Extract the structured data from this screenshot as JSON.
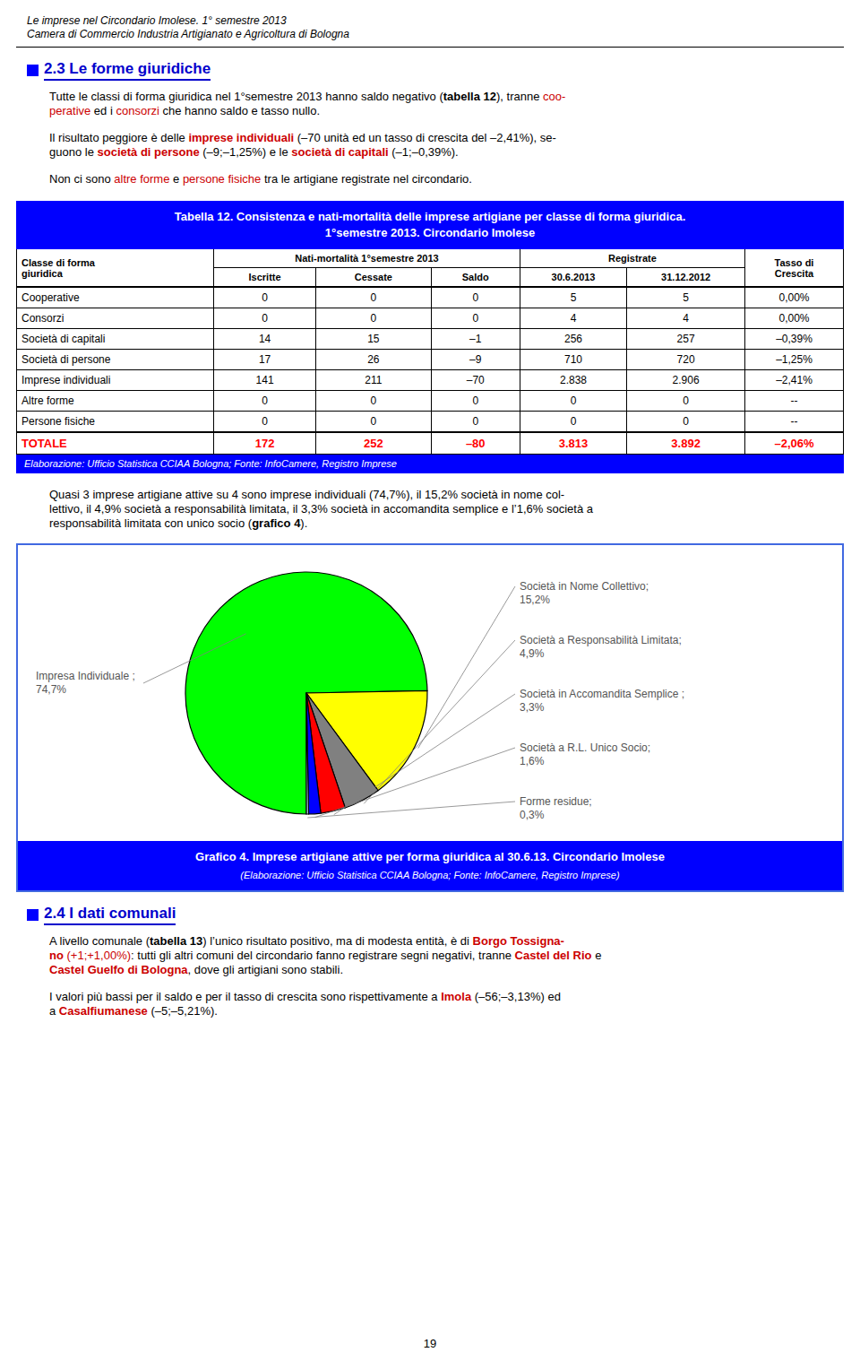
{
  "page": {
    "header": [
      "Le imprese nel Circondario Imolese. 1° semestre 2013",
      "Camera di Commercio Industria Artigianato e Agricoltura di Bologna"
    ],
    "colors": {
      "heading": "#0000cc",
      "emphasis": "#cc0000",
      "bar": "#0000ff",
      "total": "#ff0000",
      "chart_border": "#4169e1"
    },
    "content": [
      {
        "kind": "heading",
        "text": "2.3 Le forme giuridiche"
      },
      {
        "kind": "paragraph",
        "lines": [
          [
            {
              "text": "Tutte le classi di forma giuridica nel 1°semestre 2013 hanno saldo negativo (",
              "style": "plain"
            },
            {
              "text": "tabella 12",
              "style": "bold"
            },
            {
              "text": "), tranne ",
              "style": "plain"
            },
            {
              "text": "coo-",
              "style": "red"
            }
          ],
          [
            {
              "text": "perative",
              "style": "red"
            },
            {
              "text": " ed i ",
              "style": "plain"
            },
            {
              "text": "consorzi",
              "style": "red"
            },
            {
              "text": " che hanno saldo e tasso nullo.",
              "style": "plain"
            }
          ]
        ]
      },
      {
        "kind": "paragraph",
        "lines": [
          [
            {
              "text": "Il risultato peggiore è delle ",
              "style": "plain"
            },
            {
              "text": "imprese individuali",
              "style": "red-bold"
            },
            {
              "text": " (–70 unità ed un tasso di crescita del –2,41%), se-",
              "style": "plain"
            }
          ],
          [
            {
              "text": "guono le ",
              "style": "plain"
            },
            {
              "text": "società di persone",
              "style": "red-bold"
            },
            {
              "text": " (–9;–1,25%) e le ",
              "style": "plain"
            },
            {
              "text": "società di capitali",
              "style": "red-bold"
            },
            {
              "text": " (–1;–0,39%).",
              "style": "plain"
            }
          ]
        ]
      },
      {
        "kind": "paragraph",
        "lines": [
          [
            {
              "text": "Non ci sono ",
              "style": "plain"
            },
            {
              "text": "altre forme",
              "style": "red"
            },
            {
              "text": " e ",
              "style": "plain"
            },
            {
              "text": "persone fisiche",
              "style": "red"
            },
            {
              "text": " tra le artigiane registrate nel circondario.",
              "style": "plain"
            }
          ]
        ]
      },
      {
        "kind": "table",
        "title": [
          "Tabella 12. Consistenza e nati-mortalità delle imprese artigiane per classe di forma giuridica.",
          "1°semestre 2013. Circondario Imolese"
        ],
        "groups": [
          "Nati-mortalità 1°semestre 2013",
          "Registrate"
        ],
        "columns": [
          "Classe di forma\ngiuridica",
          "Iscritte",
          "Cessate",
          "Saldo",
          "30.6.2013",
          "31.12.2012",
          "Tasso di\nCrescita"
        ],
        "rows": [
          [
            "Cooperative",
            "0",
            "0",
            "0",
            "5",
            "5",
            "0,00%"
          ],
          [
            "Consorzi",
            "0",
            "0",
            "0",
            "4",
            "4",
            "0,00%"
          ],
          [
            "Società di capitali",
            "14",
            "15",
            "–1",
            "256",
            "257",
            "–0,39%"
          ],
          [
            "Società di persone",
            "17",
            "26",
            "–9",
            "710",
            "720",
            "–1,25%"
          ],
          [
            "Imprese individuali",
            "141",
            "211",
            "–70",
            "2.838",
            "2.906",
            "–2,41%"
          ],
          [
            "Altre forme",
            "0",
            "0",
            "0",
            "0",
            "0",
            "--"
          ],
          [
            "Persone fisiche",
            "0",
            "0",
            "0",
            "0",
            "0",
            "--"
          ]
        ],
        "total": [
          "TOTALE",
          "172",
          "252",
          "–80",
          "3.813",
          "3.892",
          "–2,06%"
        ],
        "footer": "Elaborazione: Ufficio Statistica CCIAA Bologna; Fonte: InfoCamere, Registro Imprese"
      },
      {
        "kind": "paragraph",
        "lines": [
          [
            {
              "text": "Quasi 3 imprese artigiane attive su 4 sono imprese individuali (74,7%), il 15,2% società in nome col-",
              "style": "plain"
            }
          ],
          [
            {
              "text": "lettivo, il 4,9% società a responsabilità limitata, il 3,3% società in accomandita semplice e l’1,6% società a",
              "style": "plain"
            }
          ],
          [
            {
              "text": "responsabilità limitata con unico socio (",
              "style": "plain"
            },
            {
              "text": "grafico 4",
              "style": "bold"
            },
            {
              "text": ").",
              "style": "plain"
            }
          ]
        ]
      },
      {
        "kind": "chart"
      },
      {
        "kind": "heading",
        "text": "2.4 I dati comunali"
      },
      {
        "kind": "paragraph",
        "lines": [
          [
            {
              "text": "A livello comunale (",
              "style": "plain"
            },
            {
              "text": "tabella 13",
              "style": "bold"
            },
            {
              "text": ") l’unico risultato positivo, ma di modesta entità, è di ",
              "style": "plain"
            },
            {
              "text": "Borgo Tossigna-",
              "style": "red-bold"
            }
          ],
          [
            {
              "text": "no",
              "style": "red-bold"
            },
            {
              "text": " (+1;+1,00%)",
              "style": "red"
            },
            {
              "text": ": tutti gli altri comuni del circondario fanno registrare segni negativi, tranne ",
              "style": "plain"
            },
            {
              "text": "Castel del Rio",
              "style": "red-bold"
            },
            {
              "text": " e",
              "style": "plain"
            }
          ],
          [
            {
              "text": "Castel Guelfo di Bologna",
              "style": "red-bold"
            },
            {
              "text": ", dove gli artigiani sono stabili.",
              "style": "plain"
            }
          ]
        ]
      },
      {
        "kind": "paragraph",
        "lines": [
          [
            {
              "text": "I valori più bassi per il saldo e per il tasso di crescita sono rispettivamente a ",
              "style": "plain"
            },
            {
              "text": "Imola",
              "style": "red-bold"
            },
            {
              "text": " (–56;–3,13%) ed",
              "style": "plain"
            }
          ],
          [
            {
              "text": "a ",
              "style": "plain"
            },
            {
              "text": "Casalfiumanese",
              "style": "red-bold"
            },
            {
              "text": " (–5;–5,21%).",
              "style": "plain"
            }
          ]
        ]
      }
    ],
    "page_number": "19"
  },
  "chart_data": {
    "type": "pie",
    "title": "Grafico 4. Imprese artigiane attive per forma giuridica al 30.6.13. Circondario Imolese",
    "subtitle": "(Elaborazione: Ufficio Statistica CCIAA Bologna; Fonte: InfoCamere, Registro Imprese)",
    "categories": [
      "Impresa Individuale ;",
      "Società in Nome Collettivo;",
      "Società a Responsabilità Limitata;",
      "Società in Accomandita Semplice ;",
      "Società a R.L. Unico Socio;",
      "Forme residue;"
    ],
    "values": [
      74.7,
      15.2,
      4.9,
      3.3,
      1.6,
      0.3
    ],
    "value_labels": [
      "74,7%",
      "15,2%",
      "4,9%",
      "3,3%",
      "1,6%",
      "0,3%"
    ],
    "colors": [
      "#00ff00",
      "#ffff00",
      "#808080",
      "#ff0000",
      "#0000ff",
      "#add8e6"
    ]
  }
}
